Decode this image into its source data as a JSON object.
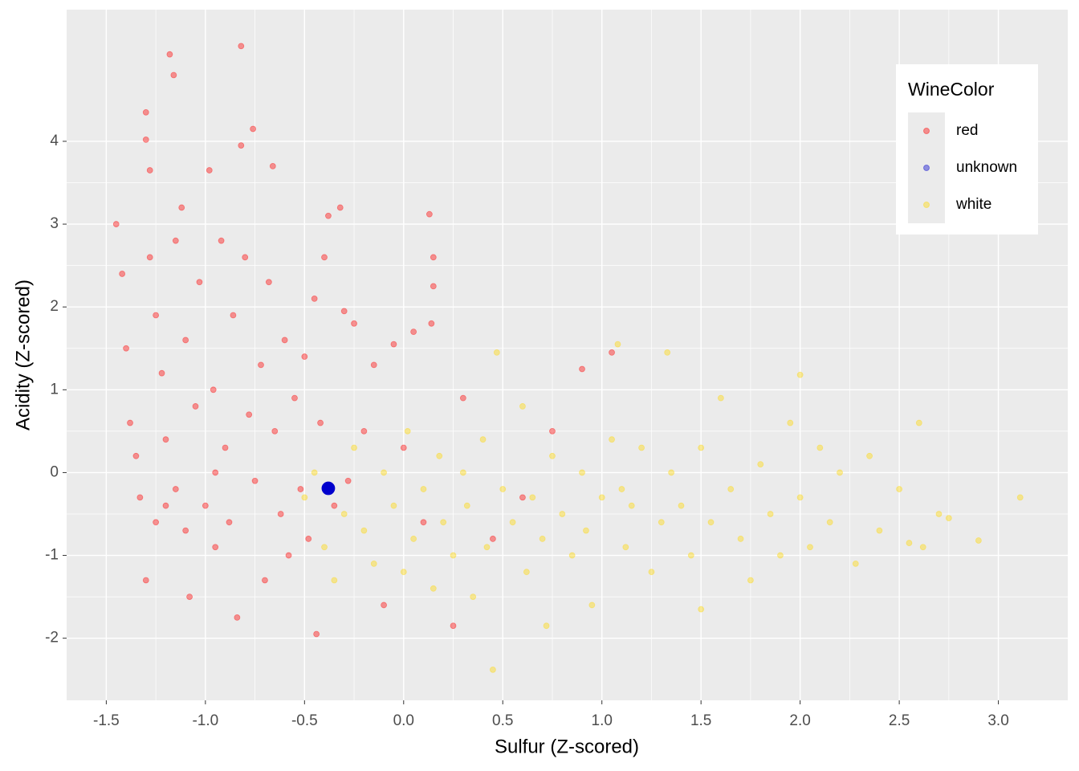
{
  "chart_data": {
    "type": "scatter",
    "x_label": "Sulfur (Z-scored)",
    "y_label": "Acidity  (Z-scored)",
    "legend_title": "WineColor",
    "legend_position": "top-right",
    "grid": true,
    "xlim": [
      -1.7,
      3.35
    ],
    "ylim": [
      -2.75,
      5.59
    ],
    "xticks": [
      -1.5,
      {
        "value": -1,
        "label": "-1.0"
      },
      -0.5,
      {
        "value": 0,
        "label": "0.0"
      },
      0.5,
      {
        "value": 1,
        "label": "1.0"
      },
      1.5,
      {
        "value": 2,
        "label": "2.0"
      },
      2.5,
      {
        "value": 3,
        "label": "3.0"
      }
    ],
    "yticks": [
      -2,
      -1,
      0,
      1,
      2,
      3,
      4
    ],
    "series": [
      {
        "name": "red",
        "color": "#ff0000",
        "opacity": 0.4,
        "x": [
          -1.45,
          -1.42,
          -1.4,
          -1.38,
          -1.35,
          -1.33,
          -1.3,
          -1.3,
          -1.28,
          -1.28,
          -1.25,
          -1.25,
          -1.22,
          -1.2,
          -1.18,
          -1.16,
          -1.15,
          -1.15,
          -1.12,
          -1.1,
          -1.08,
          -1.05,
          -1.03,
          -1.0,
          -0.98,
          -0.96,
          -0.95,
          -0.92,
          -0.9,
          -0.88,
          -0.86,
          -0.84,
          -0.82,
          -0.82,
          -0.8,
          -0.78,
          -0.76,
          -0.75,
          -0.72,
          -0.7,
          -0.68,
          -0.66,
          -0.65,
          -0.62,
          -0.6,
          -0.58,
          -0.55,
          -0.52,
          -0.5,
          -0.48,
          -0.45,
          -0.44,
          -0.42,
          -0.4,
          -0.38,
          -0.35,
          -0.32,
          -0.3,
          -0.28,
          -0.25,
          -0.2,
          -0.15,
          -0.1,
          -0.05,
          0.0,
          0.05,
          0.1,
          0.13,
          0.15,
          0.15,
          0.14,
          0.25,
          0.3,
          0.45,
          0.6,
          0.9,
          1.05,
          0.75,
          -1.2,
          -1.1,
          -1.3,
          -0.95
        ],
        "y": [
          3.0,
          2.4,
          1.5,
          0.6,
          0.2,
          -0.3,
          4.35,
          4.02,
          3.65,
          2.6,
          1.9,
          -0.6,
          1.2,
          0.4,
          5.05,
          4.8,
          2.8,
          -0.2,
          3.2,
          1.6,
          -1.5,
          0.8,
          2.3,
          -0.4,
          3.65,
          1.0,
          -0.9,
          2.8,
          0.3,
          -0.6,
          1.9,
          -1.75,
          5.15,
          3.95,
          2.6,
          0.7,
          4.15,
          -0.1,
          1.3,
          -1.3,
          2.3,
          3.7,
          0.5,
          -0.5,
          1.6,
          -1.0,
          0.9,
          -0.2,
          1.4,
          -0.8,
          2.1,
          -1.95,
          0.6,
          2.6,
          3.1,
          -0.4,
          3.2,
          1.95,
          -0.1,
          1.8,
          0.5,
          1.3,
          -1.6,
          1.55,
          0.3,
          1.7,
          -0.6,
          3.12,
          2.6,
          2.25,
          1.8,
          -1.85,
          0.9,
          -0.8,
          -0.3,
          1.25,
          1.45,
          0.5,
          -0.4,
          -0.7,
          -1.3,
          0.0
        ]
      },
      {
        "name": "unknown",
        "color": "#0000cd",
        "opacity": 1,
        "x": [
          -0.38
        ],
        "y": [
          -0.19
        ]
      },
      {
        "name": "white",
        "color": "#ffd700",
        "opacity": 0.4,
        "x": [
          -0.5,
          -0.45,
          -0.4,
          -0.35,
          -0.3,
          -0.25,
          -0.2,
          -0.15,
          -0.1,
          -0.05,
          0.0,
          0.02,
          0.05,
          0.1,
          0.15,
          0.18,
          0.2,
          0.25,
          0.3,
          0.32,
          0.35,
          0.4,
          0.42,
          0.45,
          0.47,
          0.5,
          0.55,
          0.6,
          0.62,
          0.65,
          0.7,
          0.72,
          0.75,
          0.8,
          0.85,
          0.9,
          0.92,
          0.95,
          1.0,
          1.05,
          1.08,
          1.1,
          1.12,
          1.15,
          1.2,
          1.25,
          1.3,
          1.33,
          1.35,
          1.4,
          1.45,
          1.5,
          1.5,
          1.55,
          1.6,
          1.65,
          1.7,
          1.75,
          1.8,
          1.85,
          1.9,
          1.95,
          2.0,
          2.0,
          2.05,
          2.1,
          2.15,
          2.2,
          2.28,
          2.35,
          2.4,
          2.5,
          2.55,
          2.6,
          2.62,
          2.7,
          2.75,
          2.9,
          3.11
        ],
        "y": [
          -0.3,
          0.0,
          -0.9,
          -1.3,
          -0.5,
          0.3,
          -0.7,
          -1.1,
          0.0,
          -0.4,
          -1.2,
          0.5,
          -0.8,
          -0.2,
          -1.4,
          0.2,
          -0.6,
          -1.0,
          0.0,
          -0.4,
          -1.5,
          0.4,
          -0.9,
          -2.38,
          1.45,
          -0.2,
          -0.6,
          0.8,
          -1.2,
          -0.3,
          -0.8,
          -1.85,
          0.2,
          -0.5,
          -1.0,
          0.0,
          -0.7,
          -1.6,
          -0.3,
          0.4,
          1.55,
          -0.2,
          -0.9,
          -0.4,
          0.3,
          -1.2,
          -0.6,
          1.45,
          0.0,
          -0.4,
          -1.0,
          -1.65,
          0.3,
          -0.6,
          0.9,
          -0.2,
          -0.8,
          -1.3,
          0.1,
          -0.5,
          -1.0,
          0.6,
          1.18,
          -0.3,
          -0.9,
          0.3,
          -0.6,
          0.0,
          -1.1,
          0.2,
          -0.7,
          -0.2,
          -0.85,
          0.6,
          -0.9,
          -0.5,
          -0.55,
          -0.82,
          -0.3
        ]
      }
    ]
  }
}
